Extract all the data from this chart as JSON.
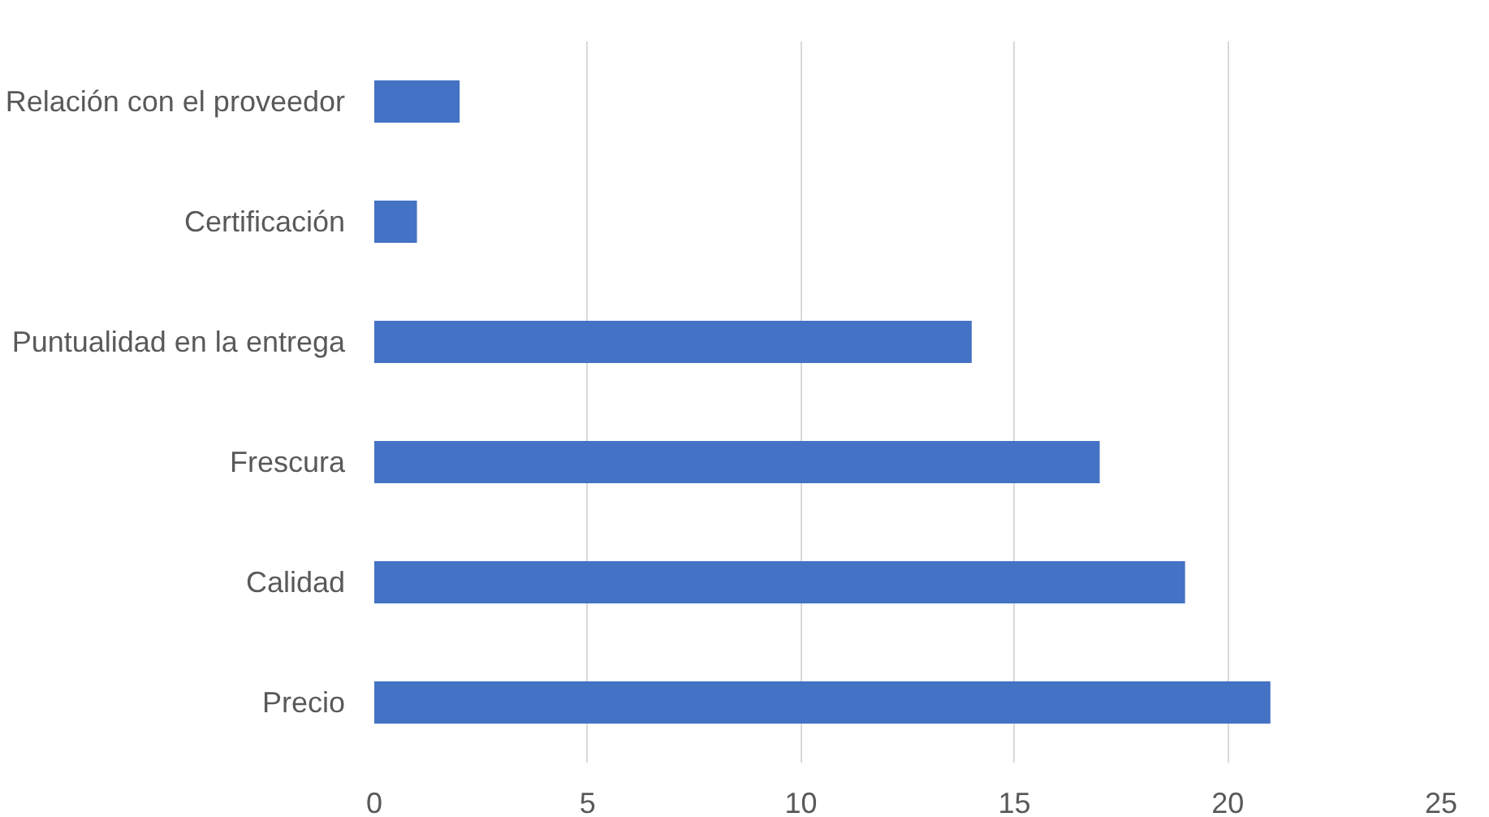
{
  "chart_data": {
    "type": "bar",
    "orientation": "horizontal",
    "categories": [
      "Relación con el proveedor",
      "Certificación",
      "Puntualidad en la entrega",
      "Frescura",
      "Calidad",
      "Precio"
    ],
    "values": [
      2,
      1,
      14,
      17,
      19,
      21
    ],
    "color": "#4472c4",
    "xlim": [
      0,
      25
    ],
    "xticks": [
      0,
      5,
      10,
      15,
      20,
      25
    ],
    "grid": "x"
  }
}
